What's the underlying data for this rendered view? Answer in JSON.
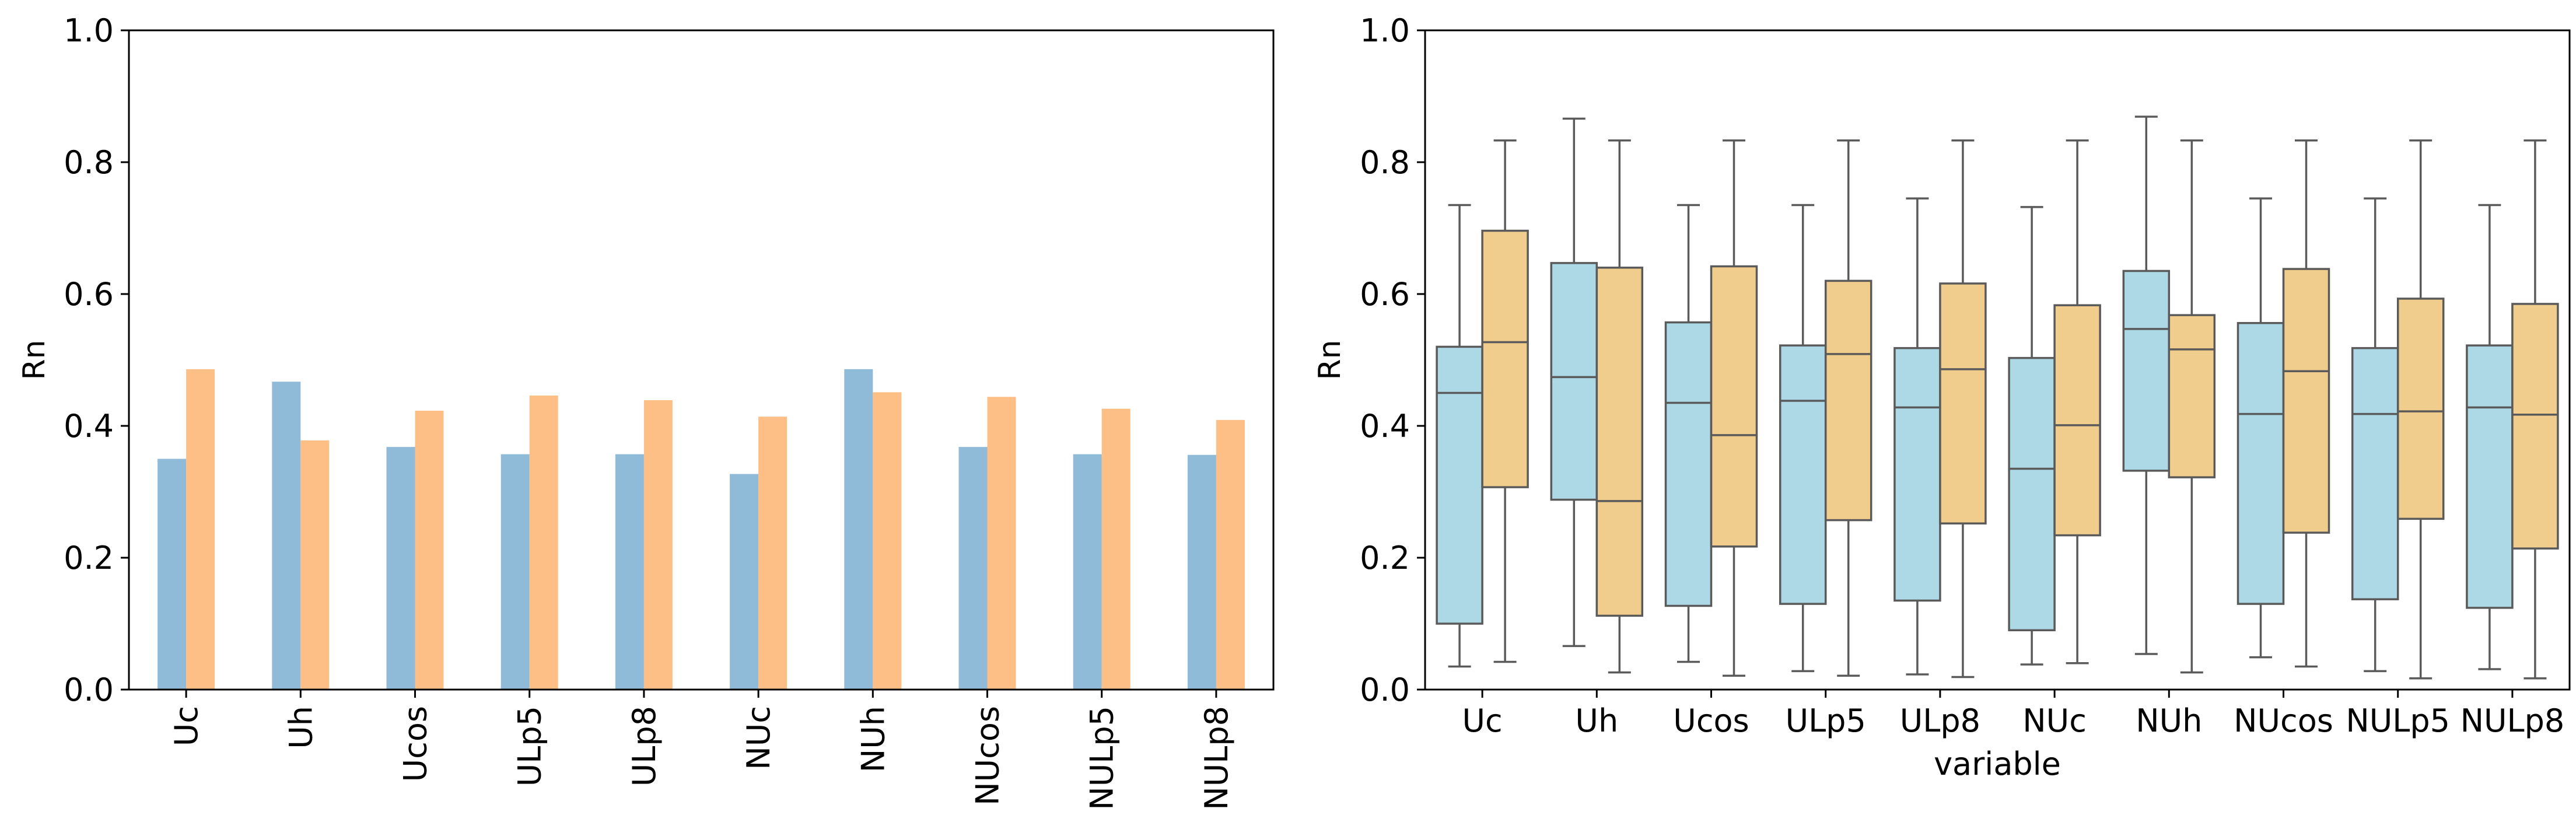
{
  "chart_data": [
    {
      "type": "bar",
      "ylabel": "Rn",
      "ylim": [
        0,
        1
      ],
      "yticks": [
        "0.0",
        "0.2",
        "0.4",
        "0.6",
        "0.8",
        "1.0"
      ],
      "categories": [
        "Uc",
        "Uh",
        "Ucos",
        "ULp5",
        "ULp8",
        "NUc",
        "NUh",
        "NUcos",
        "NULp5",
        "NULp8"
      ],
      "series": [
        {
          "values": [
            0.35,
            0.467,
            0.368,
            0.357,
            0.357,
            0.327,
            0.486,
            0.368,
            0.357,
            0.356
          ],
          "color": "#8fbad8"
        },
        {
          "values": [
            0.486,
            0.378,
            0.423,
            0.446,
            0.439,
            0.414,
            0.451,
            0.444,
            0.426,
            0.409
          ],
          "color": "#fdbf86"
        }
      ],
      "xtick_rotation": "vertical",
      "grid": false
    },
    {
      "type": "box",
      "ylabel": "Rn",
      "xlabel": "variable",
      "ylim": [
        0,
        1
      ],
      "yticks": [
        "0.0",
        "0.2",
        "0.4",
        "0.6",
        "0.8",
        "1.0"
      ],
      "categories": [
        "Uc",
        "Uh",
        "Ucos",
        "ULp5",
        "ULp8",
        "NUc",
        "NUh",
        "NUcos",
        "NULp5",
        "NULp8"
      ],
      "series": [
        {
          "color": "#add8e6",
          "boxes": [
            {
              "whislo": 0.035,
              "q1": 0.1,
              "med": 0.45,
              "q3": 0.52,
              "whishi": 0.735
            },
            {
              "whislo": 0.066,
              "q1": 0.288,
              "med": 0.474,
              "q3": 0.647,
              "whishi": 0.866
            },
            {
              "whislo": 0.042,
              "q1": 0.127,
              "med": 0.435,
              "q3": 0.557,
              "whishi": 0.735
            },
            {
              "whislo": 0.028,
              "q1": 0.13,
              "med": 0.438,
              "q3": 0.522,
              "whishi": 0.735
            },
            {
              "whislo": 0.023,
              "q1": 0.135,
              "med": 0.428,
              "q3": 0.518,
              "whishi": 0.745
            },
            {
              "whislo": 0.038,
              "q1": 0.09,
              "med": 0.335,
              "q3": 0.503,
              "whishi": 0.732
            },
            {
              "whislo": 0.054,
              "q1": 0.332,
              "med": 0.547,
              "q3": 0.635,
              "whishi": 0.869
            },
            {
              "whislo": 0.049,
              "q1": 0.13,
              "med": 0.418,
              "q3": 0.556,
              "whishi": 0.745
            },
            {
              "whislo": 0.028,
              "q1": 0.137,
              "med": 0.418,
              "q3": 0.518,
              "whishi": 0.745
            },
            {
              "whislo": 0.031,
              "q1": 0.124,
              "med": 0.428,
              "q3": 0.522,
              "whishi": 0.735
            }
          ]
        },
        {
          "color": "#f0cd8c",
          "boxes": [
            {
              "whislo": 0.042,
              "q1": 0.307,
              "med": 0.527,
              "q3": 0.696,
              "whishi": 0.833
            },
            {
              "whislo": 0.026,
              "q1": 0.112,
              "med": 0.286,
              "q3": 0.64,
              "whishi": 0.833
            },
            {
              "whislo": 0.021,
              "q1": 0.217,
              "med": 0.386,
              "q3": 0.642,
              "whishi": 0.833
            },
            {
              "whislo": 0.021,
              "q1": 0.257,
              "med": 0.509,
              "q3": 0.62,
              "whishi": 0.833
            },
            {
              "whislo": 0.019,
              "q1": 0.252,
              "med": 0.486,
              "q3": 0.616,
              "whishi": 0.833
            },
            {
              "whislo": 0.04,
              "q1": 0.234,
              "med": 0.401,
              "q3": 0.583,
              "whishi": 0.833
            },
            {
              "whislo": 0.026,
              "q1": 0.322,
              "med": 0.516,
              "q3": 0.568,
              "whishi": 0.833
            },
            {
              "whislo": 0.035,
              "q1": 0.238,
              "med": 0.483,
              "q3": 0.638,
              "whishi": 0.833
            },
            {
              "whislo": 0.017,
              "q1": 0.259,
              "med": 0.422,
              "q3": 0.593,
              "whishi": 0.833
            },
            {
              "whislo": 0.017,
              "q1": 0.214,
              "med": 0.417,
              "q3": 0.585,
              "whishi": 0.833
            }
          ]
        }
      ],
      "grid": false
    }
  ]
}
